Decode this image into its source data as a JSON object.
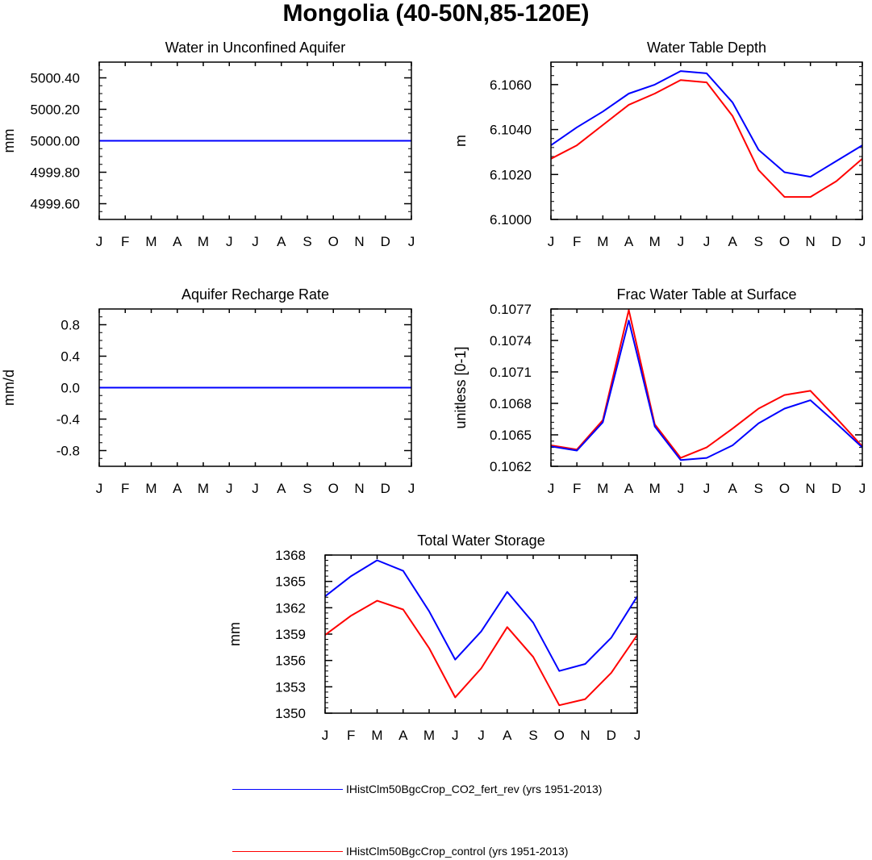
{
  "title": "Mongolia (40-50N,85-120E)",
  "colors": {
    "series1": "#0000ff",
    "series2": "#ff0000"
  },
  "legend": [
    {
      "label": "IHistClm50BgcCrop_CO2_fert_rev (yrs 1951-2013)",
      "color": "#0000ff"
    },
    {
      "label": "IHistClm50BgcCrop_control (yrs 1951-2013)",
      "color": "#ff0000"
    }
  ],
  "chart_data": [
    {
      "type": "line",
      "title": "Water in Unconfined Aquifer",
      "ylabel": "mm",
      "categories": [
        "J",
        "F",
        "M",
        "A",
        "M",
        "J",
        "J",
        "A",
        "S",
        "O",
        "N",
        "D",
        "J"
      ],
      "ylim": [
        4999.5,
        5000.5
      ],
      "yticks": [
        4999.6,
        4999.8,
        5000.0,
        5000.2,
        5000.4
      ],
      "ytick_labels": [
        "4999.60",
        "4999.80",
        "5000.00",
        "5000.20",
        "5000.40"
      ],
      "yminor_step": 0.05,
      "series": [
        {
          "name": "IHistClm50BgcCrop_CO2_fert_rev (yrs 1951-2013)",
          "color": "#0000ff",
          "values": [
            5000,
            5000,
            5000,
            5000,
            5000,
            5000,
            5000,
            5000,
            5000,
            5000,
            5000,
            5000,
            5000
          ]
        },
        {
          "name": "IHistClm50BgcCrop_control (yrs 1951-2013)",
          "color": "#ff0000",
          "values": [
            5000,
            5000,
            5000,
            5000,
            5000,
            5000,
            5000,
            5000,
            5000,
            5000,
            5000,
            5000,
            5000
          ]
        }
      ]
    },
    {
      "type": "line",
      "title": "Water Table Depth",
      "ylabel": "m",
      "categories": [
        "J",
        "F",
        "M",
        "A",
        "M",
        "J",
        "J",
        "A",
        "S",
        "O",
        "N",
        "D",
        "J"
      ],
      "ylim": [
        6.1,
        6.107
      ],
      "yticks": [
        6.1,
        6.102,
        6.104,
        6.106
      ],
      "ytick_labels": [
        "6.1000",
        "6.1020",
        "6.1040",
        "6.1060"
      ],
      "yminor_step": 0.0004,
      "series": [
        {
          "name": "IHistClm50BgcCrop_CO2_fert_rev (yrs 1951-2013)",
          "color": "#0000ff",
          "values": [
            6.1033,
            6.1041,
            6.1048,
            6.1056,
            6.106,
            6.1066,
            6.1065,
            6.1052,
            6.1031,
            6.1021,
            6.1019,
            6.1026,
            6.1033
          ]
        },
        {
          "name": "IHistClm50BgcCrop_control (yrs 1951-2013)",
          "color": "#ff0000",
          "values": [
            6.1027,
            6.1033,
            6.1042,
            6.1051,
            6.1056,
            6.1062,
            6.1061,
            6.1046,
            6.1022,
            6.101,
            6.101,
            6.1017,
            6.1027
          ]
        }
      ]
    },
    {
      "type": "line",
      "title": "Aquifer Recharge Rate",
      "ylabel": "mm/d",
      "categories": [
        "J",
        "F",
        "M",
        "A",
        "M",
        "J",
        "J",
        "A",
        "S",
        "O",
        "N",
        "D",
        "J"
      ],
      "ylim": [
        -1.0,
        1.0
      ],
      "yticks": [
        -0.8,
        -0.4,
        0.0,
        0.4,
        0.8
      ],
      "ytick_labels": [
        "-0.8",
        "-0.4",
        "0.0",
        "0.4",
        "0.8"
      ],
      "yminor_step": 0.1,
      "series": [
        {
          "name": "IHistClm50BgcCrop_CO2_fert_rev (yrs 1951-2013)",
          "color": "#0000ff",
          "values": [
            0,
            0,
            0,
            0,
            0,
            0,
            0,
            0,
            0,
            0,
            0,
            0,
            0
          ]
        },
        {
          "name": "IHistClm50BgcCrop_control (yrs 1951-2013)",
          "color": "#ff0000",
          "values": [
            0,
            0,
            0,
            0,
            0,
            0,
            0,
            0,
            0,
            0,
            0,
            0,
            0
          ]
        }
      ]
    },
    {
      "type": "line",
      "title": "Frac Water Table at Surface",
      "ylabel": "unitless [0-1]",
      "categories": [
        "J",
        "F",
        "M",
        "A",
        "M",
        "J",
        "J",
        "A",
        "S",
        "O",
        "N",
        "D",
        "J"
      ],
      "ylim": [
        0.1062,
        0.1077
      ],
      "yticks": [
        0.1062,
        0.1065,
        0.1068,
        0.1071,
        0.1074,
        0.1077
      ],
      "ytick_labels": [
        "0.1062",
        "0.1065",
        "0.1068",
        "0.1071",
        "0.1074",
        "0.1077"
      ],
      "yminor_step": 6e-05,
      "series": [
        {
          "name": "IHistClm50BgcCrop_CO2_fert_rev (yrs 1951-2013)",
          "color": "#0000ff",
          "values": [
            0.10639,
            0.10635,
            0.10662,
            0.10759,
            0.10658,
            0.10626,
            0.10628,
            0.1064,
            0.10661,
            0.10675,
            0.10683,
            0.10661,
            0.10638
          ]
        },
        {
          "name": "IHistClm50BgcCrop_control (yrs 1951-2013)",
          "color": "#ff0000",
          "values": [
            0.1064,
            0.10636,
            0.10664,
            0.10769,
            0.1066,
            0.10628,
            0.10638,
            0.10656,
            0.10675,
            0.10688,
            0.10692,
            0.10666,
            0.10639
          ]
        }
      ]
    },
    {
      "type": "line",
      "title": "Total Water Storage",
      "ylabel": "mm",
      "categories": [
        "J",
        "F",
        "M",
        "A",
        "M",
        "J",
        "J",
        "A",
        "S",
        "O",
        "N",
        "D",
        "J"
      ],
      "ylim": [
        1350,
        1368
      ],
      "yticks": [
        1350,
        1353,
        1356,
        1359,
        1362,
        1365,
        1368
      ],
      "ytick_labels": [
        "1350",
        "1353",
        "1356",
        "1359",
        "1362",
        "1365",
        "1368"
      ],
      "yminor_step": 0.6,
      "series": [
        {
          "name": "IHistClm50BgcCrop_CO2_fert_rev (yrs 1951-2013)",
          "color": "#0000ff",
          "values": [
            1363.3,
            1365.6,
            1367.4,
            1366.2,
            1361.6,
            1356.1,
            1359.3,
            1363.8,
            1360.3,
            1354.8,
            1355.6,
            1358.6,
            1363.3
          ]
        },
        {
          "name": "IHistClm50BgcCrop_control (yrs 1951-2013)",
          "color": "#ff0000",
          "values": [
            1358.9,
            1361.1,
            1362.8,
            1361.8,
            1357.4,
            1351.8,
            1355.1,
            1359.8,
            1356.4,
            1350.9,
            1351.6,
            1354.6,
            1358.9
          ]
        }
      ]
    }
  ]
}
